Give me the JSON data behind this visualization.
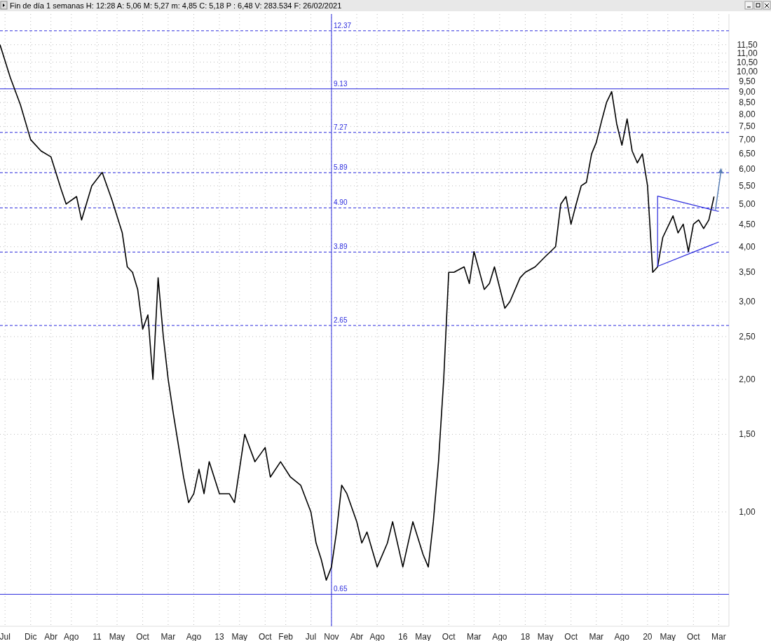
{
  "chart_data": {
    "type": "line",
    "title": "Fin de día 1 semanas  H: 12:28  A: 5,06  M: 5,27  m: 4,85  C: 5,18  P : 6,48  V: 283.534  F: 26/02/2021",
    "log": true,
    "grid": true,
    "xlim": [
      "2009-06",
      "2021-05"
    ],
    "ylim": [
      0.55,
      13.5
    ],
    "xticks": [
      {
        "value": "2009-07",
        "label": "Jul"
      },
      {
        "value": "2009-12",
        "label": "Dic"
      },
      {
        "value": "2010-04",
        "label": "Abr"
      },
      {
        "value": "2010-08",
        "label": "Ago"
      },
      {
        "value": "2011-01",
        "label": "11"
      },
      {
        "value": "2011-05",
        "label": "May"
      },
      {
        "value": "2011-10",
        "label": "Oct"
      },
      {
        "value": "2012-03",
        "label": "Mar"
      },
      {
        "value": "2012-08",
        "label": "Ago"
      },
      {
        "value": "2013-01",
        "label": "13"
      },
      {
        "value": "2013-05",
        "label": "May"
      },
      {
        "value": "2013-10",
        "label": "Oct"
      },
      {
        "value": "2014-02",
        "label": "Feb"
      },
      {
        "value": "2014-07",
        "label": "Jul"
      },
      {
        "value": "2014-11",
        "label": "Nov"
      },
      {
        "value": "2015-04",
        "label": "Abr"
      },
      {
        "value": "2015-08",
        "label": "Ago"
      },
      {
        "value": "2016-01",
        "label": "16"
      },
      {
        "value": "2016-05",
        "label": "May"
      },
      {
        "value": "2016-10",
        "label": "Oct"
      },
      {
        "value": "2017-03",
        "label": "Mar"
      },
      {
        "value": "2017-08",
        "label": "Ago"
      },
      {
        "value": "2018-01",
        "label": "18"
      },
      {
        "value": "2018-05",
        "label": "May"
      },
      {
        "value": "2018-10",
        "label": "Oct"
      },
      {
        "value": "2019-03",
        "label": "Mar"
      },
      {
        "value": "2019-08",
        "label": "Ago"
      },
      {
        "value": "2020-01",
        "label": "20"
      },
      {
        "value": "2020-05",
        "label": "May"
      },
      {
        "value": "2020-10",
        "label": "Oct"
      },
      {
        "value": "2021-03",
        "label": "Mar"
      }
    ],
    "yticks": [
      {
        "value": 1,
        "label": "1,00"
      },
      {
        "value": 1.5,
        "label": "1,50"
      },
      {
        "value": 2,
        "label": "2,00"
      },
      {
        "value": 2.5,
        "label": "2,50"
      },
      {
        "value": 3,
        "label": "3,00"
      },
      {
        "value": 3.5,
        "label": "3,50"
      },
      {
        "value": 4,
        "label": "4,00"
      },
      {
        "value": 4.5,
        "label": "4,50"
      },
      {
        "value": 5,
        "label": "5,00"
      },
      {
        "value": 5.5,
        "label": "5,50"
      },
      {
        "value": 6,
        "label": "6,00"
      },
      {
        "value": 6.5,
        "label": "6,50"
      },
      {
        "value": 7,
        "label": "7,00"
      },
      {
        "value": 7.5,
        "label": "7,50"
      },
      {
        "value": 8,
        "label": "8,00"
      },
      {
        "value": 8.5,
        "label": "8,50"
      },
      {
        "value": 9,
        "label": "9,00"
      },
      {
        "value": 9.5,
        "label": "9,50"
      },
      {
        "value": 10,
        "label": "10,00"
      },
      {
        "value": 10.5,
        "label": "10,50"
      },
      {
        "value": 11,
        "label": "11,00"
      },
      {
        "value": 11.5,
        "label": "11,50"
      }
    ],
    "series": [
      {
        "color": "#000000",
        "x": [
          "2009-06",
          "2009-08",
          "2009-10",
          "2009-12",
          "2010-02",
          "2010-04",
          "2010-06",
          "2010-07",
          "2010-09",
          "2010-10",
          "2010-12",
          "2011-02",
          "2011-04",
          "2011-06",
          "2011-07",
          "2011-08",
          "2011-09",
          "2011-10",
          "2011-11",
          "2011-12",
          "2012-01",
          "2012-02",
          "2012-03",
          "2012-04",
          "2012-06",
          "2012-07",
          "2012-08",
          "2012-09",
          "2012-10",
          "2012-11",
          "2013-01",
          "2013-03",
          "2013-04",
          "2013-06",
          "2013-08",
          "2013-10",
          "2013-11",
          "2014-01",
          "2014-03",
          "2014-05",
          "2014-07",
          "2014-08",
          "2014-09",
          "2014-10",
          "2014-11",
          "2014-12",
          "2015-01",
          "2015-02",
          "2015-04",
          "2015-05",
          "2015-06",
          "2015-08",
          "2015-10",
          "2015-11",
          "2016-01",
          "2016-03",
          "2016-05",
          "2016-06",
          "2016-07",
          "2016-08",
          "2016-09",
          "2016-10",
          "2016-11",
          "2017-01",
          "2017-02",
          "2017-03",
          "2017-05",
          "2017-06",
          "2017-07",
          "2017-09",
          "2017-10",
          "2017-12",
          "2018-01",
          "2018-03",
          "2018-05",
          "2018-07",
          "2018-08",
          "2018-09",
          "2018-10",
          "2018-11",
          "2018-12",
          "2019-01",
          "2019-02",
          "2019-03",
          "2019-04",
          "2019-05",
          "2019-06",
          "2019-07",
          "2019-08",
          "2019-09",
          "2019-10",
          "2019-11",
          "2019-12",
          "2020-01",
          "2020-02",
          "2020-03",
          "2020-04",
          "2020-06",
          "2020-07",
          "2020-08",
          "2020-09",
          "2020-10",
          "2020-11",
          "2020-12",
          "2021-01",
          "2021-02"
        ],
        "values": [
          11.5,
          9.7,
          8.4,
          7.0,
          6.6,
          6.4,
          5.4,
          5.0,
          5.2,
          4.6,
          5.5,
          5.9,
          5.1,
          4.3,
          3.6,
          3.5,
          3.2,
          2.6,
          2.8,
          2.0,
          3.4,
          2.5,
          2.0,
          1.67,
          1.2,
          1.05,
          1.1,
          1.25,
          1.1,
          1.3,
          1.1,
          1.1,
          1.05,
          1.5,
          1.3,
          1.4,
          1.2,
          1.3,
          1.2,
          1.15,
          1.0,
          0.85,
          0.78,
          0.7,
          0.75,
          0.9,
          1.15,
          1.1,
          0.95,
          0.85,
          0.9,
          0.75,
          0.85,
          0.95,
          0.75,
          0.95,
          0.8,
          0.75,
          0.95,
          1.3,
          2.0,
          3.5,
          3.5,
          3.6,
          3.3,
          3.9,
          3.2,
          3.3,
          3.6,
          2.9,
          3.0,
          3.4,
          3.5,
          3.6,
          3.8,
          4.0,
          5.0,
          5.2,
          4.5,
          5.0,
          5.5,
          5.6,
          6.5,
          6.9,
          7.7,
          8.5,
          9.0,
          7.6,
          6.8,
          7.8,
          6.6,
          6.2,
          6.5,
          5.5,
          3.5,
          3.6,
          4.2,
          4.7,
          4.3,
          4.5,
          3.9,
          4.5,
          4.6,
          4.4,
          4.6,
          5.2
        ]
      },
      {
        "color": "#2b2bdd",
        "x": [
          "2021-03",
          "2020-03",
          "2020-03",
          "2021-03"
        ],
        "values": [
          4.81,
          5.21,
          3.61,
          4.1
        ]
      }
    ],
    "ref_lines": [
      {
        "axis": "y",
        "value": 12.37,
        "label": "12.37",
        "color": "#2b2bdd",
        "line_style": "dashed"
      },
      {
        "axis": "y",
        "value": 9.13,
        "label": "9.13",
        "color": "#2b2bdd",
        "line_style": "solid"
      },
      {
        "axis": "y",
        "value": 7.27,
        "label": "7.27",
        "color": "#2b2bdd",
        "line_style": "dashed"
      },
      {
        "axis": "y",
        "value": 5.89,
        "label": "5.89",
        "color": "#2b2bdd",
        "line_style": "dashed"
      },
      {
        "axis": "y",
        "value": 4.9,
        "label": "4.90",
        "color": "#2b2bdd",
        "line_style": "dashed"
      },
      {
        "axis": "y",
        "value": 3.89,
        "label": "3.89",
        "color": "#2b2bdd",
        "line_style": "dashed"
      },
      {
        "axis": "y",
        "value": 2.65,
        "label": "2.65",
        "color": "#2b2bdd",
        "line_style": "dashed"
      },
      {
        "axis": "y",
        "value": 0.65,
        "label": "0.65",
        "color": "#2b2bdd",
        "line_style": "solid"
      },
      {
        "axis": "x",
        "value": "2014-11",
        "color": "#2b2bdd",
        "line_style": "solid"
      }
    ]
  }
}
